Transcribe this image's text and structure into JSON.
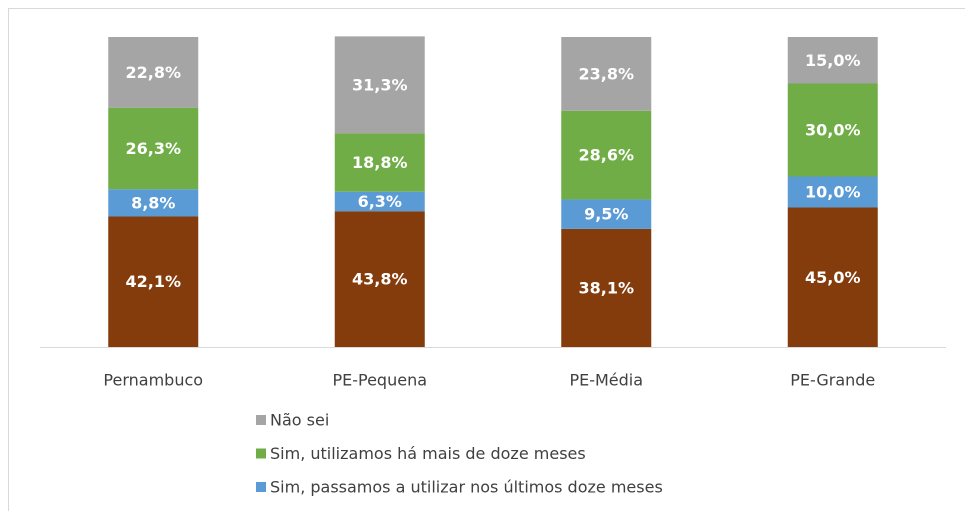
{
  "chart_data": {
    "type": "stacked_bar",
    "categories": [
      "Pernambuco",
      "PE-Pequena",
      "PE-Média",
      "PE-Grande"
    ],
    "ylim": [
      0,
      100
    ],
    "series": [
      {
        "color": "#843c0c",
        "values": [
          42.1,
          43.8,
          38.1,
          45.0
        ],
        "value_labels": [
          "42,1%",
          "43,8%",
          "38,1%",
          "45,0%"
        ]
      },
      {
        "name": "Sim, passamos a utilizar nos últimos doze meses",
        "color": "#5b9bd5",
        "values": [
          8.8,
          6.3,
          9.5,
          10.0
        ],
        "value_labels": [
          "8,8%",
          "6,3%",
          "9,5%",
          "10,0%"
        ]
      },
      {
        "name": "Sim, utilizamos há mais de doze meses",
        "color": "#70ad47",
        "values": [
          26.3,
          18.8,
          28.6,
          30.0
        ],
        "value_labels": [
          "26,3%",
          "18,8%",
          "28,6%",
          "30,0%"
        ]
      },
      {
        "name": "Não sei",
        "color": "#a5a5a5",
        "values": [
          22.8,
          31.3,
          23.8,
          15.0
        ],
        "value_labels": [
          "22,8%",
          "31,3%",
          "23,8%",
          "15,0%"
        ]
      }
    ]
  }
}
